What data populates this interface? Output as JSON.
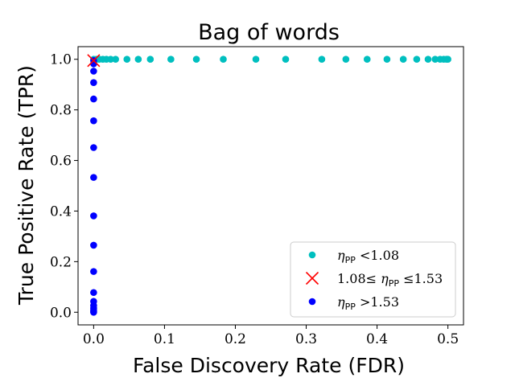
{
  "chart_data": {
    "type": "scatter",
    "title": "Bag of words",
    "xlabel": "False Discovery Rate (FDR)",
    "ylabel": "True Positive Rate (TPR)",
    "xlim": [
      -0.022,
      0.522
    ],
    "ylim": [
      -0.05,
      1.05
    ],
    "xticks": [
      {
        "value": 0.0,
        "label": "0.0"
      },
      {
        "value": 0.1,
        "label": "0.1"
      },
      {
        "value": 0.2,
        "label": "0.2"
      },
      {
        "value": 0.3,
        "label": "0.3"
      },
      {
        "value": 0.4,
        "label": "0.4"
      },
      {
        "value": 0.5,
        "label": "0.5"
      }
    ],
    "yticks": [
      {
        "value": 0.0,
        "label": "0.0"
      },
      {
        "value": 0.2,
        "label": "0.2"
      },
      {
        "value": 0.4,
        "label": "0.4"
      },
      {
        "value": 0.6,
        "label": "0.6"
      },
      {
        "value": 0.8,
        "label": "0.8"
      },
      {
        "value": 1.0,
        "label": "1.0"
      }
    ],
    "grid": false,
    "legend_position": "lower-right",
    "series": [
      {
        "name": "η_PP <1.08",
        "legend_math": "η",
        "legend_sub": "PP",
        "legend_text": " <1.08",
        "marker": "circle",
        "color": "#00bfbf",
        "points": [
          [
            0.0,
            1.0
          ],
          [
            0.004,
            1.0
          ],
          [
            0.008,
            1.0
          ],
          [
            0.013,
            1.0
          ],
          [
            0.018,
            1.0
          ],
          [
            0.024,
            1.0
          ],
          [
            0.031,
            1.0
          ],
          [
            0.047,
            1.0
          ],
          [
            0.063,
            1.0
          ],
          [
            0.08,
            1.0
          ],
          [
            0.109,
            1.0
          ],
          [
            0.145,
            1.0
          ],
          [
            0.183,
            1.0
          ],
          [
            0.229,
            1.0
          ],
          [
            0.271,
            1.0
          ],
          [
            0.322,
            1.0
          ],
          [
            0.356,
            1.0
          ],
          [
            0.386,
            1.0
          ],
          [
            0.414,
            1.0
          ],
          [
            0.437,
            1.0
          ],
          [
            0.456,
            1.0
          ],
          [
            0.472,
            1.0
          ],
          [
            0.482,
            1.0
          ],
          [
            0.489,
            1.0
          ],
          [
            0.494,
            1.0
          ],
          [
            0.498,
            1.0
          ],
          [
            0.5,
            1.0
          ]
        ]
      },
      {
        "name": "1.08≤ η_PP ≤1.53",
        "legend_prefix": "1.08≤ ",
        "legend_math": "η",
        "legend_sub": "PP",
        "legend_text": " ≤1.53",
        "marker": "x",
        "color": "#ff0000",
        "points": [
          [
            0.0,
            0.995
          ]
        ]
      },
      {
        "name": "η_PP >1.53",
        "legend_math": "η",
        "legend_sub": "PP",
        "legend_text": " >1.53",
        "marker": "circle",
        "color": "#0000ff",
        "points": [
          [
            0.0,
            0.995
          ],
          [
            0.0,
            0.982
          ],
          [
            0.0,
            0.953
          ],
          [
            0.0,
            0.908
          ],
          [
            0.0,
            0.843
          ],
          [
            0.0,
            0.757
          ],
          [
            0.0,
            0.651
          ],
          [
            0.0,
            0.533
          ],
          [
            0.0,
            0.381
          ],
          [
            0.0,
            0.265
          ],
          [
            0.0,
            0.161
          ],
          [
            0.0,
            0.078
          ],
          [
            0.0,
            0.043
          ],
          [
            0.0,
            0.027
          ],
          [
            0.0,
            0.016
          ],
          [
            0.0,
            0.008
          ],
          [
            0.0,
            0.003
          ],
          [
            0.0,
            0.0
          ]
        ]
      }
    ]
  }
}
